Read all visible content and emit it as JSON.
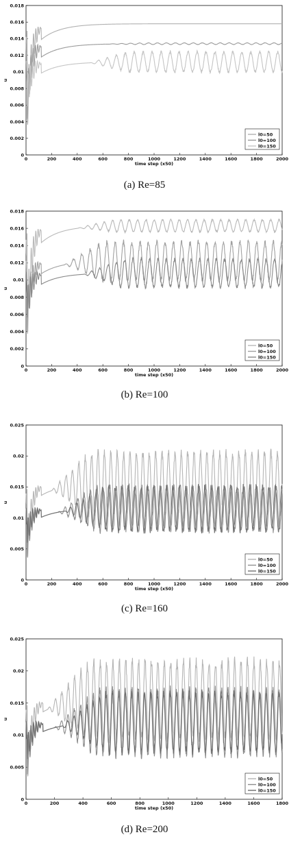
{
  "chart_data": [
    {
      "type": "line",
      "caption": "(a) Re=85",
      "xlabel": "time step (x50)",
      "ylabel": "u",
      "xlim": [
        0,
        2000
      ],
      "ylim": [
        0,
        0.018
      ],
      "xticks": [
        "0",
        "200",
        "400",
        "600",
        "800",
        "1000",
        "1200",
        "1400",
        "1600",
        "1800",
        "2000"
      ],
      "yticks": [
        "0",
        "0.002",
        "0.004",
        "0.006",
        "0.008",
        "0.01",
        "0.012",
        "0.014",
        "0.016",
        "0.018"
      ],
      "legend_position": "lower-right",
      "series": [
        {
          "name": "l0=50",
          "color": "#b0b0b0",
          "shape": {
            "steady": 0.0158,
            "amp": 5e-05,
            "period": 1,
            "onset": 0
          }
        },
        {
          "name": "l0=100",
          "color": "#9a9a9a",
          "shape": {
            "steady": 0.0134,
            "amp": 0.0001,
            "period": 70,
            "onset": 600
          }
        },
        {
          "name": "l0=150",
          "color": "#c4c4c4",
          "shape": {
            "steady": 0.0112,
            "amp": 0.0012,
            "period": 70,
            "onset": 500
          }
        }
      ]
    },
    {
      "type": "line",
      "caption": "(b) Re=100",
      "xlabel": "time step (x50)",
      "ylabel": "u",
      "xlim": [
        0,
        2000
      ],
      "ylim": [
        0,
        0.018
      ],
      "xticks": [
        "0",
        "200",
        "400",
        "600",
        "800",
        "1000",
        "1200",
        "1400",
        "1600",
        "1800",
        "2000"
      ],
      "yticks": [
        "0",
        "0.002",
        "0.004",
        "0.006",
        "0.008",
        "0.01",
        "0.012",
        "0.014",
        "0.016",
        "0.018"
      ],
      "legend_position": "lower-right",
      "series": [
        {
          "name": "l0=50",
          "color": "#b8b8b8",
          "shape": {
            "steady": 0.0163,
            "amp": 0.0007,
            "period": 65,
            "onset": 400
          }
        },
        {
          "name": "l0=100",
          "color": "#a0a0a0",
          "shape": {
            "steady": 0.0122,
            "amp": 0.0022,
            "period": 65,
            "onset": 300
          }
        },
        {
          "name": "l0=150",
          "color": "#888888",
          "shape": {
            "steady": 0.0108,
            "amp": 0.0016,
            "period": 65,
            "onset": 450
          }
        }
      ]
    },
    {
      "type": "line",
      "caption": "(c) Re=160",
      "xlabel": "time step (x50)",
      "ylabel": "u",
      "xlim": [
        0,
        2000
      ],
      "ylim": [
        0,
        0.025
      ],
      "xticks": [
        "0",
        "200",
        "400",
        "600",
        "800",
        "1000",
        "1200",
        "1400",
        "1600",
        "1800",
        "2000"
      ],
      "yticks": [
        "0",
        "0.005",
        "0.01",
        "0.015",
        "0.02",
        "0.025"
      ],
      "legend_position": "lower-right",
      "series": [
        {
          "name": "l0=50",
          "color": "#b4b4b4",
          "shape": {
            "steady": 0.0155,
            "amp": 0.005,
            "period": 50,
            "onset": 200
          }
        },
        {
          "name": "l0=100",
          "color": "#909090",
          "shape": {
            "steady": 0.0115,
            "amp": 0.0035,
            "period": 50,
            "onset": 250
          }
        },
        {
          "name": "l0=150",
          "color": "#707070",
          "shape": {
            "steady": 0.0115,
            "amp": 0.0035,
            "period": 50,
            "onset": 300
          }
        }
      ]
    },
    {
      "type": "line",
      "caption": "(d) Re=200",
      "xlabel": "time step (x50)",
      "ylabel": "u",
      "xlim": [
        0,
        1800
      ],
      "ylim": [
        0,
        0.025
      ],
      "xticks": [
        "0",
        "200",
        "400",
        "600",
        "800",
        "1000",
        "1200",
        "1400",
        "1600",
        "1800"
      ],
      "yticks": [
        "0",
        "0.005",
        "0.01",
        "0.015",
        "0.02",
        "0.025"
      ],
      "legend_position": "lower-right",
      "series": [
        {
          "name": "l0=50",
          "color": "#b4b4b4",
          "shape": {
            "steady": 0.0155,
            "amp": 0.006,
            "period": 45,
            "onset": 150
          }
        },
        {
          "name": "l0=100",
          "color": "#8c8c8c",
          "shape": {
            "steady": 0.012,
            "amp": 0.005,
            "period": 45,
            "onset": 200
          }
        },
        {
          "name": "l0=150",
          "color": "#6c6c6c",
          "shape": {
            "steady": 0.012,
            "amp": 0.0045,
            "period": 45,
            "onset": 250
          }
        }
      ]
    }
  ]
}
